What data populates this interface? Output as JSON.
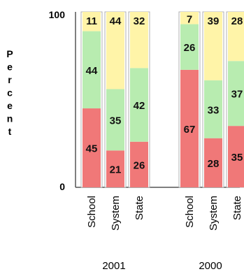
{
  "chart_data": {
    "type": "bar",
    "stacked": true,
    "ylabel": "Percent",
    "ylim": [
      0,
      100
    ],
    "yticks": [
      "0",
      "100"
    ],
    "groups": [
      {
        "label": "2001",
        "bars": [
          {
            "category": "School",
            "values": [
              45,
              44,
              11
            ]
          },
          {
            "category": "System",
            "values": [
              21,
              35,
              44
            ]
          },
          {
            "category": "State",
            "values": [
              26,
              42,
              32
            ]
          }
        ]
      },
      {
        "label": "2000",
        "bars": [
          {
            "category": "School",
            "values": [
              67,
              26,
              7
            ]
          },
          {
            "category": "System",
            "values": [
              28,
              33,
              39
            ]
          },
          {
            "category": "State",
            "values": [
              35,
              37,
              28
            ]
          }
        ]
      }
    ],
    "segment_colors": [
      "#f07878",
      "#b8ecb0",
      "#fff4a8"
    ]
  }
}
